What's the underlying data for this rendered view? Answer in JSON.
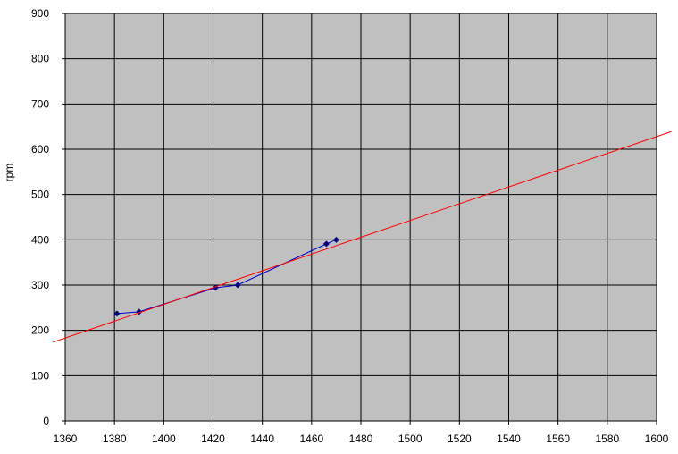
{
  "chart_data": {
    "type": "line",
    "y_label": "rpm",
    "xlim": [
      1360,
      1600
    ],
    "xticks": [
      1360,
      1380,
      1400,
      1420,
      1440,
      1460,
      1480,
      1500,
      1520,
      1540,
      1560,
      1580,
      1600
    ],
    "ylim": [
      0,
      900
    ],
    "yticks": [
      0,
      100,
      200,
      300,
      400,
      500,
      600,
      700,
      800,
      900
    ],
    "grid": true,
    "plot_background": "#c0c0c0",
    "series": [
      {
        "color": "#0000cc",
        "marker_color": "#000080",
        "marker": "diamond",
        "x": [
          1381,
          1390,
          1421,
          1430,
          1466,
          1470
        ],
        "values": [
          237,
          241,
          294,
          300,
          391,
          400
        ]
      },
      {
        "color": "#ff0000",
        "marker": "none",
        "x": [
          1355,
          1606
        ],
        "values": [
          174,
          639
        ]
      }
    ]
  }
}
